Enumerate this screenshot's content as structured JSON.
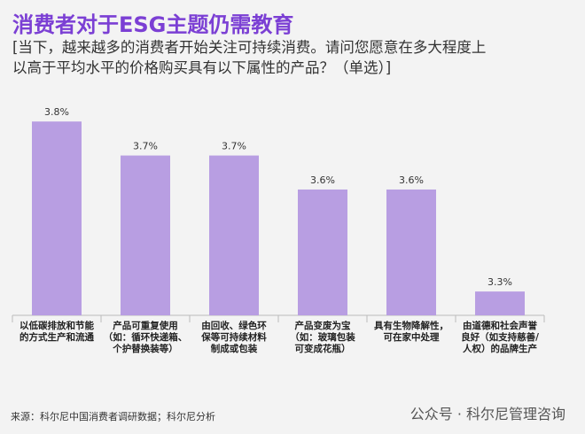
{
  "chart_data": {
    "type": "bar",
    "title": "消费者对于ESG主题仍需教育",
    "subtitle": "[当下，越来越多的消费者开始关注可持续消费。请问您愿意在多大程度上\n以高于平均水平的价格购买具有以下属性的产品？（单选）]",
    "categories": [
      "以低碳排放和节能\n的方式生产和流通",
      "产品可重复使用\n（如：循环快递箱、\n个护替换装等）",
      "由回收、绿色环\n保等可持续材料\n制成或包装",
      "产品变废为宝\n（如：玻璃包装\n可变成花瓶）",
      "具有生物降解性，\n可在家中处理",
      "由道德和社会声誉\n良好（如支持慈善/\n人权）的品牌生产"
    ],
    "values": [
      3.8,
      3.7,
      3.7,
      3.6,
      3.6,
      3.3
    ],
    "value_labels": [
      "3.8%",
      "3.7%",
      "3.7%",
      "3.6%",
      "3.6%",
      "3.3%"
    ],
    "color": "#b89ee2",
    "ylim": [
      3.23,
      3.85
    ],
    "source": "来源：科尔尼中国消费者调研数据；科尔尼分析",
    "watermark": "公众号 · 科尔尼管理咨询"
  }
}
